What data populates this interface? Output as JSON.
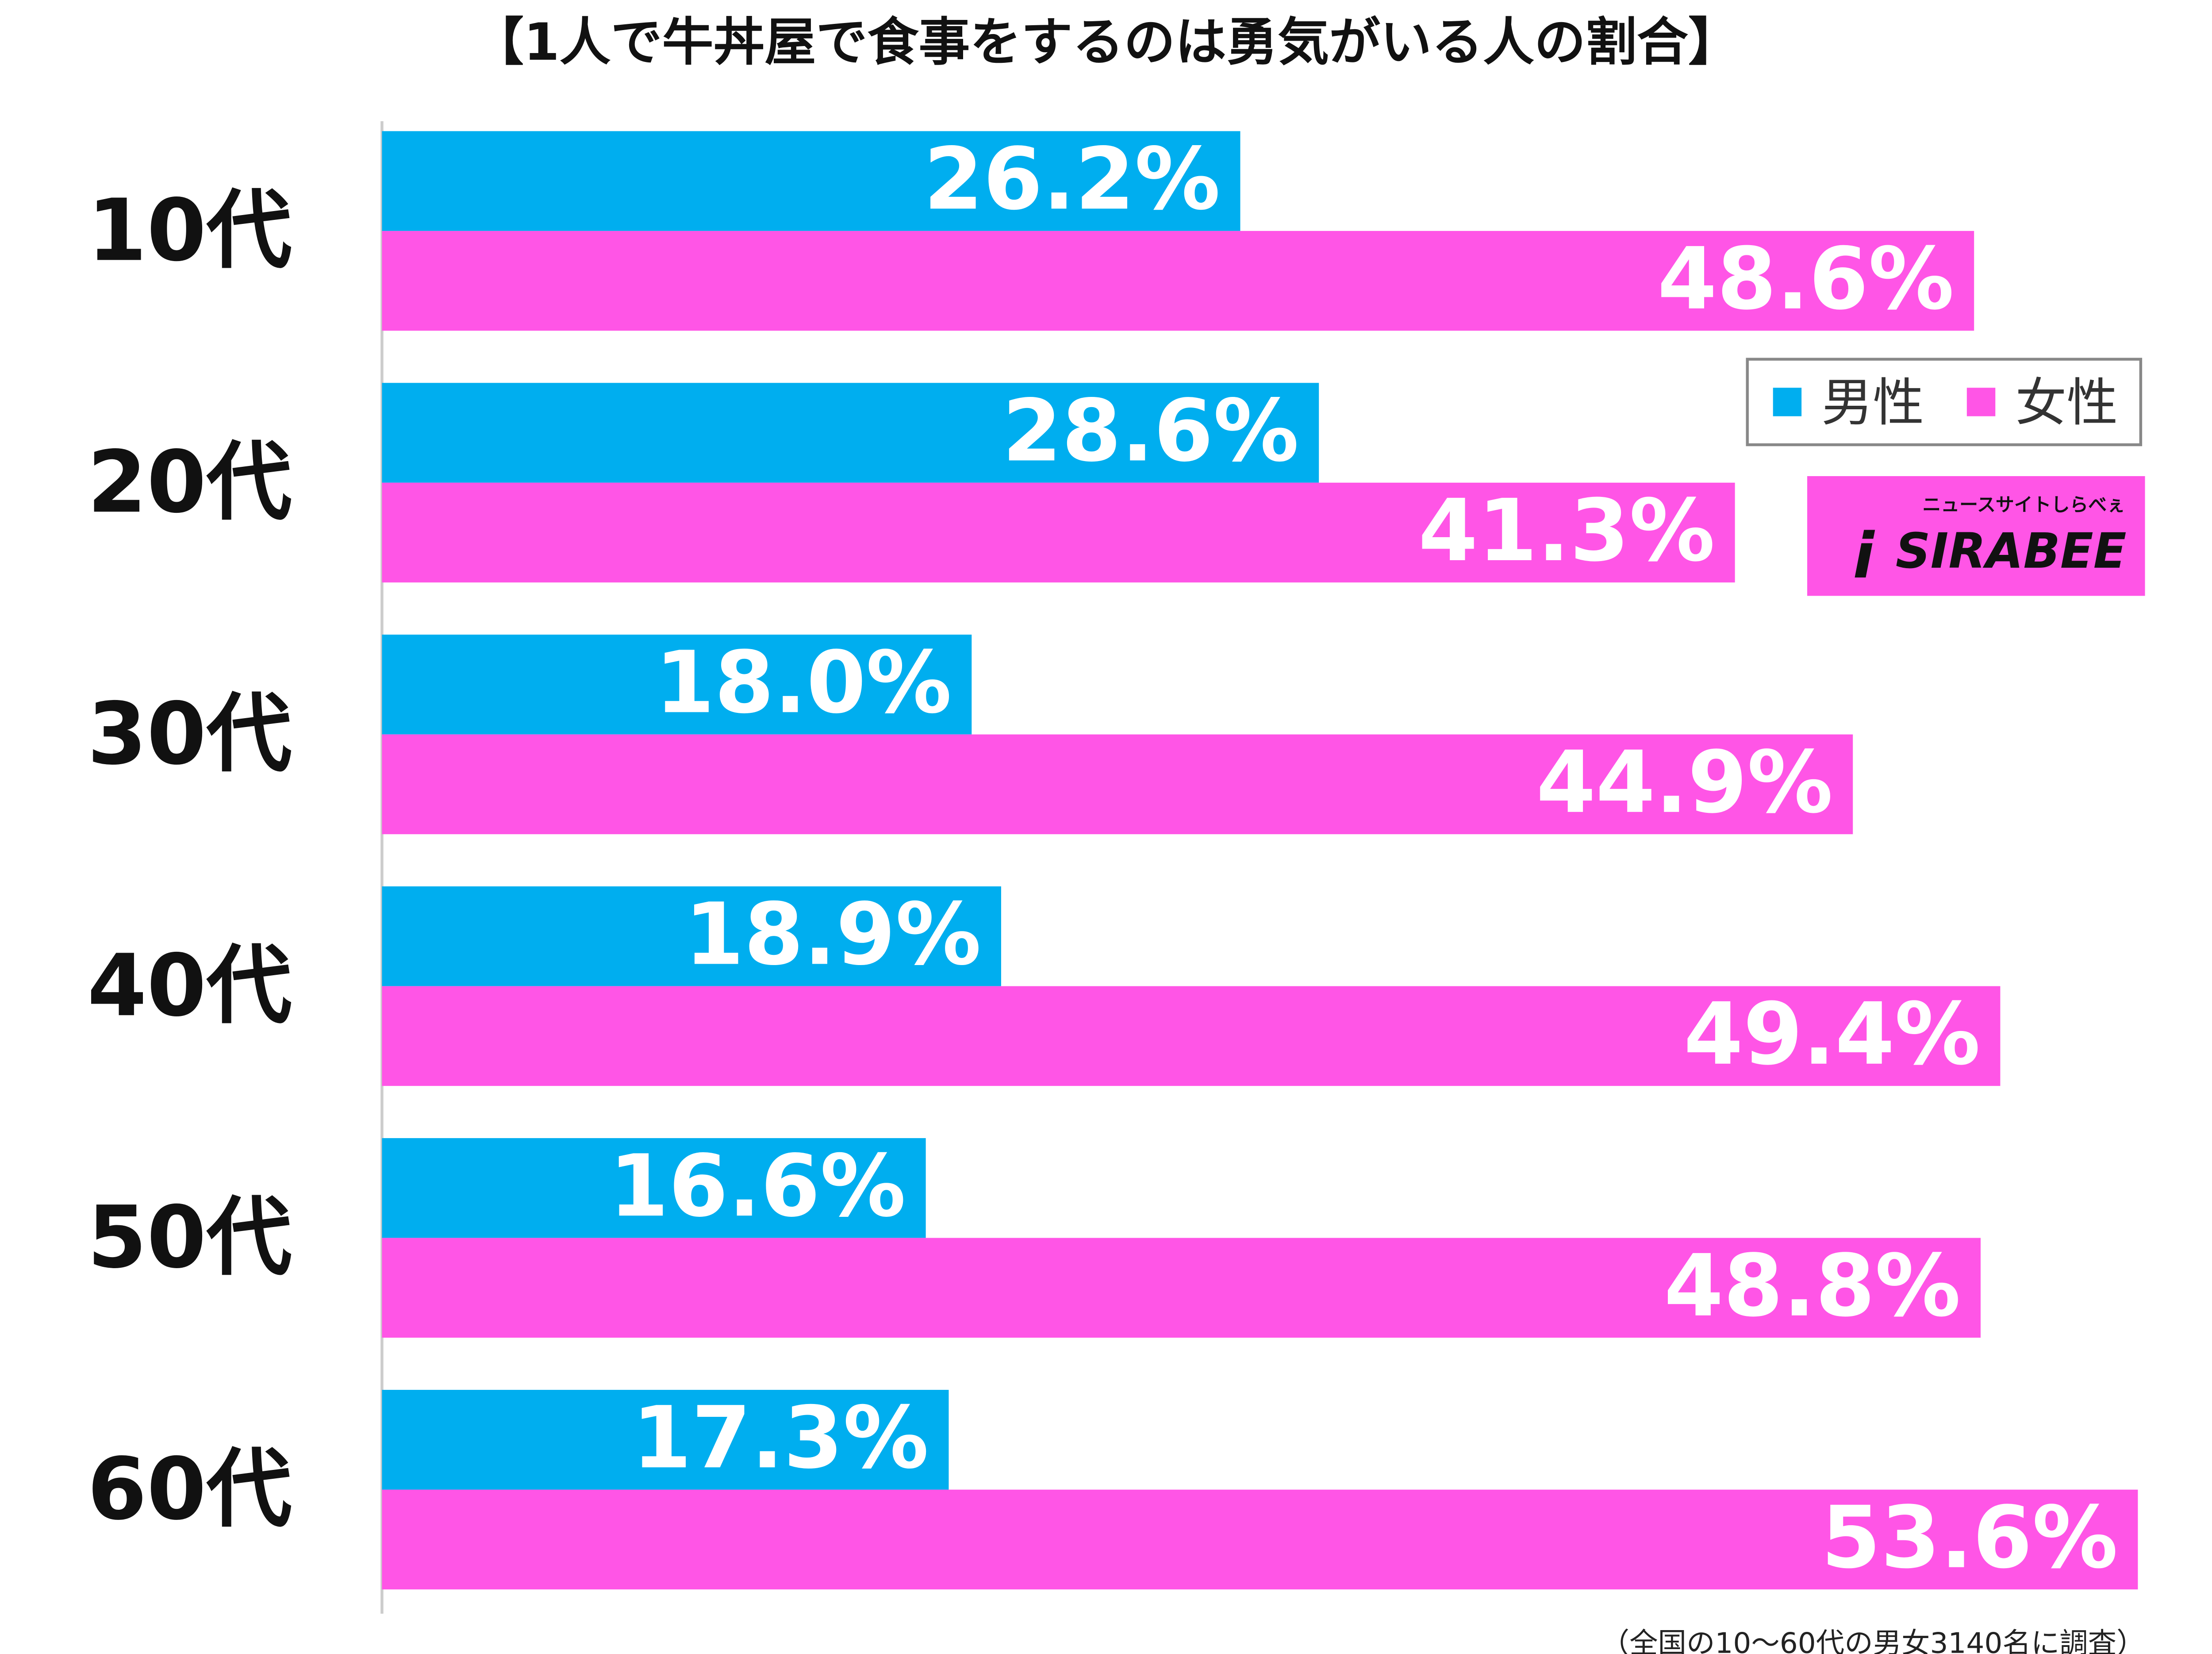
{
  "chart_data": {
    "type": "bar",
    "orientation": "horizontal",
    "title": "【1人で牛丼屋で食事をするのは勇気がいる人の割合】",
    "categories": [
      "10代",
      "20代",
      "30代",
      "40代",
      "50代",
      "60代"
    ],
    "series": [
      {
        "name": "男性",
        "color": "#00aeef",
        "values": [
          26.2,
          28.6,
          18.0,
          18.9,
          16.6,
          17.3
        ],
        "value_labels": [
          "26.2%",
          "28.6%",
          "18.0%",
          "18.9%",
          "16.6%",
          "17.3%"
        ]
      },
      {
        "name": "女性",
        "color": "#ff55e6",
        "values": [
          48.6,
          41.3,
          44.9,
          49.4,
          48.8,
          53.6
        ],
        "value_labels": [
          "48.6%",
          "41.3%",
          "44.9%",
          "49.4%",
          "48.8%",
          "53.6%"
        ]
      }
    ],
    "legend_position": "right",
    "logo": {
      "text": "SIRABEE",
      "tagline": "ニュースサイトしらべぇ"
    },
    "note": "（全国の10〜60代の男女3140名に調査）"
  }
}
